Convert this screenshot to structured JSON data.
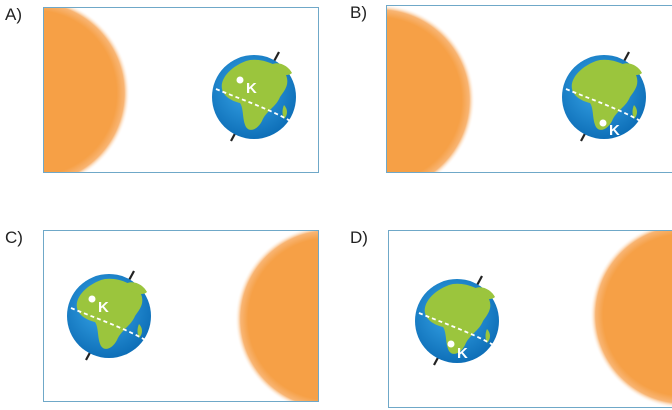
{
  "options": [
    {
      "letter": "A)",
      "point_label": "K"
    },
    {
      "letter": "B)",
      "point_label": "K"
    },
    {
      "letter": "C)",
      "point_label": "K"
    },
    {
      "letter": "D)",
      "point_label": "K"
    }
  ],
  "colors": {
    "sun": "#f6a046",
    "sun_glow": "#fbd2a6",
    "ocean": "#1e8fd6",
    "land": "#9bc53d",
    "frame": "#6fa8c8"
  }
}
